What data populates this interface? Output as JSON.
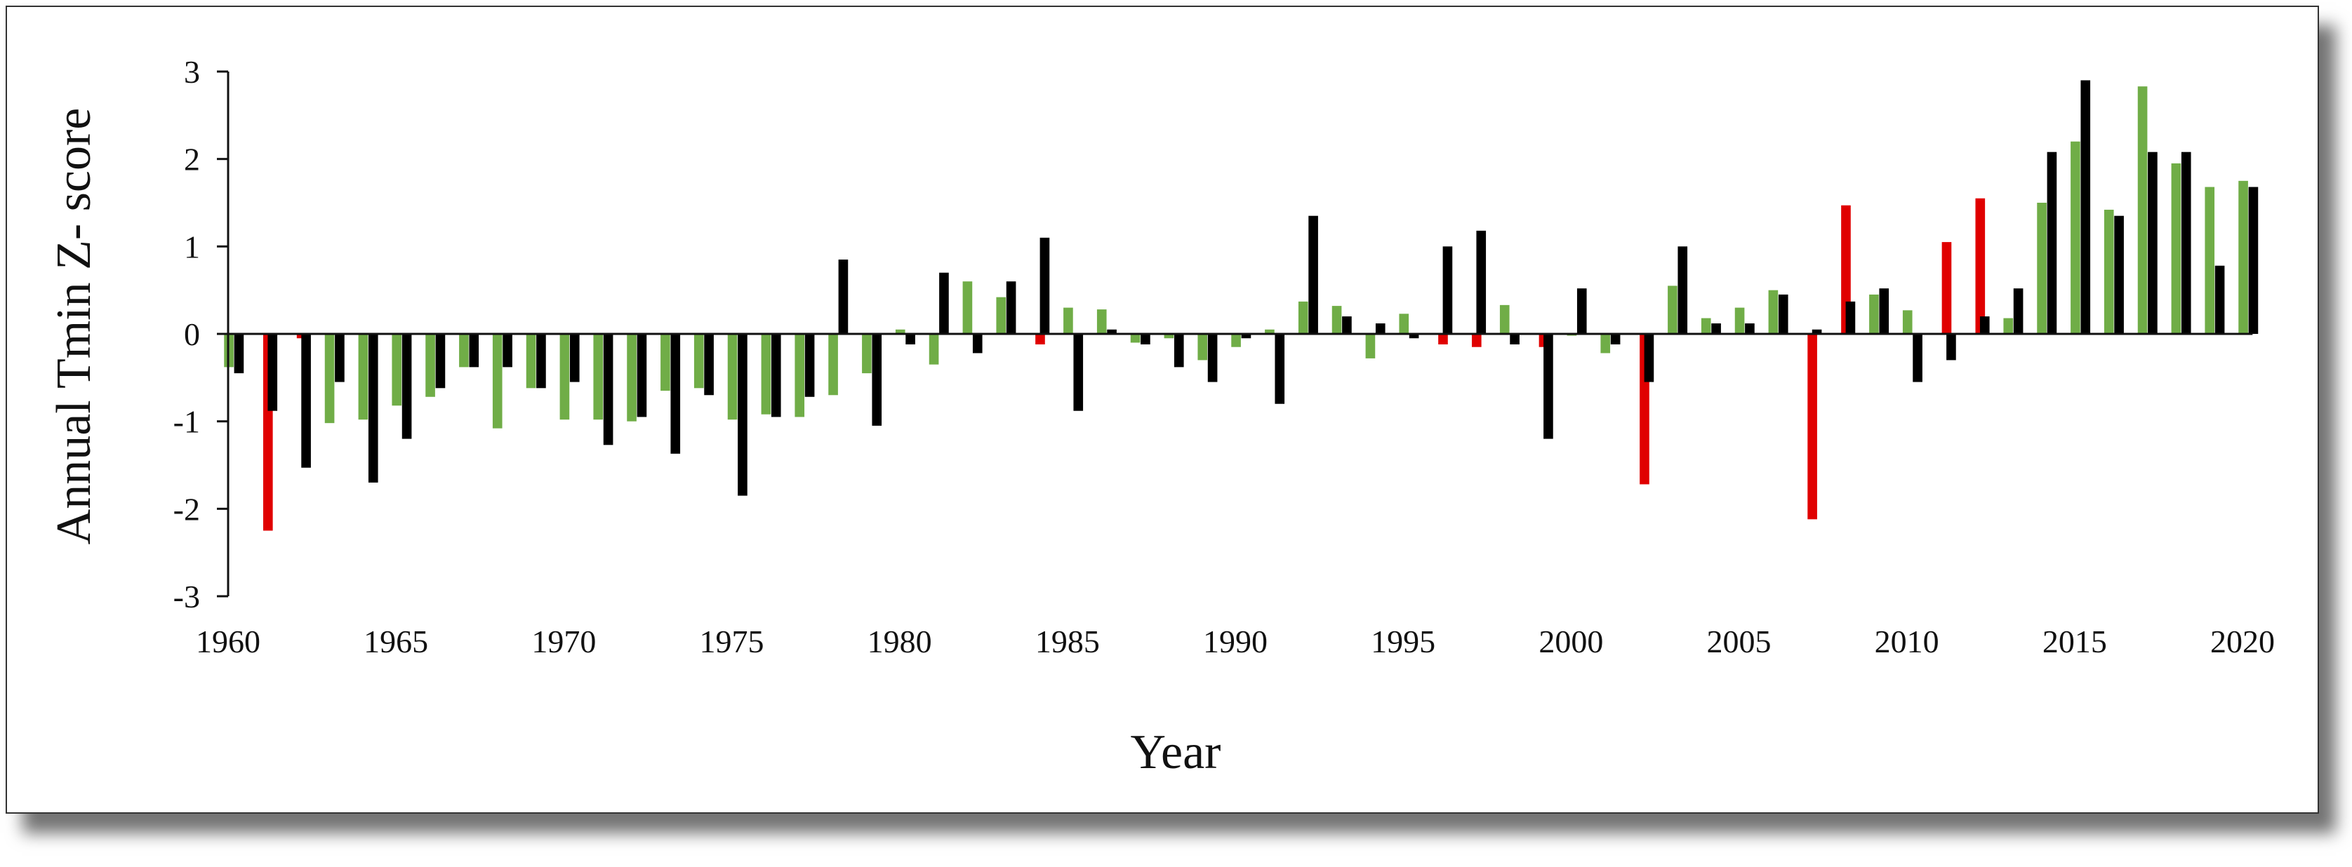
{
  "chart_data": {
    "type": "bar",
    "title": "",
    "xlabel": "Year",
    "ylabel": "Annual Tmin Z- score",
    "ylim": [
      -3,
      3
    ],
    "yticks": [
      3,
      2,
      1,
      0,
      -1,
      -2,
      -3
    ],
    "xticks": [
      1960,
      1965,
      1970,
      1975,
      1980,
      1985,
      1990,
      1995,
      2000,
      2005,
      2010,
      2015,
      2020
    ],
    "xlim": [
      1960,
      2020
    ],
    "grid": false,
    "legend": "none",
    "series": [
      {
        "color": "#e00000",
        "points": [
          {
            "x": 1961,
            "y": -2.25
          },
          {
            "x": 1962,
            "y": -0.05
          },
          {
            "x": 1984,
            "y": -0.12
          },
          {
            "x": 1996,
            "y": -0.12
          },
          {
            "x": 1997,
            "y": -0.15
          },
          {
            "x": 1999,
            "y": -0.15
          },
          {
            "x": 2002,
            "y": -1.72
          },
          {
            "x": 2007,
            "y": -2.12
          },
          {
            "x": 2008,
            "y": 1.47
          },
          {
            "x": 2011,
            "y": 1.05
          },
          {
            "x": 2012,
            "y": 1.55
          }
        ]
      },
      {
        "color": "#70ad47",
        "points": [
          {
            "x": 1960,
            "y": -0.38
          },
          {
            "x": 1963,
            "y": -1.02
          },
          {
            "x": 1964,
            "y": -0.98
          },
          {
            "x": 1965,
            "y": -0.82
          },
          {
            "x": 1966,
            "y": -0.72
          },
          {
            "x": 1967,
            "y": -0.38
          },
          {
            "x": 1968,
            "y": -1.08
          },
          {
            "x": 1969,
            "y": -0.62
          },
          {
            "x": 1970,
            "y": -0.98
          },
          {
            "x": 1971,
            "y": -0.98
          },
          {
            "x": 1972,
            "y": -1.0
          },
          {
            "x": 1973,
            "y": -0.65
          },
          {
            "x": 1974,
            "y": -0.62
          },
          {
            "x": 1975,
            "y": -0.98
          },
          {
            "x": 1976,
            "y": -0.92
          },
          {
            "x": 1977,
            "y": -0.95
          },
          {
            "x": 1978,
            "y": -0.7
          },
          {
            "x": 1979,
            "y": -0.45
          },
          {
            "x": 1980,
            "y": 0.05
          },
          {
            "x": 1981,
            "y": -0.35
          },
          {
            "x": 1982,
            "y": 0.6
          },
          {
            "x": 1983,
            "y": 0.42
          },
          {
            "x": 1985,
            "y": 0.3
          },
          {
            "x": 1986,
            "y": 0.28
          },
          {
            "x": 1987,
            "y": -0.1
          },
          {
            "x": 1988,
            "y": -0.05
          },
          {
            "x": 1989,
            "y": -0.3
          },
          {
            "x": 1990,
            "y": -0.15
          },
          {
            "x": 1991,
            "y": 0.05
          },
          {
            "x": 1992,
            "y": 0.37
          },
          {
            "x": 1993,
            "y": 0.32
          },
          {
            "x": 1994,
            "y": -0.28
          },
          {
            "x": 1995,
            "y": 0.23
          },
          {
            "x": 1998,
            "y": 0.33
          },
          {
            "x": 2000,
            "y": -0.02
          },
          {
            "x": 2001,
            "y": -0.22
          },
          {
            "x": 2003,
            "y": 0.55
          },
          {
            "x": 2004,
            "y": 0.18
          },
          {
            "x": 2005,
            "y": 0.3
          },
          {
            "x": 2006,
            "y": 0.5
          },
          {
            "x": 2009,
            "y": 0.45
          },
          {
            "x": 2010,
            "y": 0.27
          },
          {
            "x": 2013,
            "y": 0.18
          },
          {
            "x": 2014,
            "y": 1.5
          },
          {
            "x": 2015,
            "y": 2.2
          },
          {
            "x": 2016,
            "y": 1.42
          },
          {
            "x": 2017,
            "y": 2.83
          },
          {
            "x": 2018,
            "y": 1.95
          },
          {
            "x": 2019,
            "y": 1.68
          },
          {
            "x": 2020,
            "y": 1.75
          }
        ]
      },
      {
        "color": "#000000",
        "points": [
          {
            "x": 1960,
            "y": -0.45
          },
          {
            "x": 1961,
            "y": -0.88
          },
          {
            "x": 1962,
            "y": -1.53
          },
          {
            "x": 1963,
            "y": -0.55
          },
          {
            "x": 1964,
            "y": -1.7
          },
          {
            "x": 1965,
            "y": -1.2
          },
          {
            "x": 1966,
            "y": -0.62
          },
          {
            "x": 1967,
            "y": -0.38
          },
          {
            "x": 1968,
            "y": -0.38
          },
          {
            "x": 1969,
            "y": -0.62
          },
          {
            "x": 1970,
            "y": -0.55
          },
          {
            "x": 1971,
            "y": -1.27
          },
          {
            "x": 1972,
            "y": -0.95
          },
          {
            "x": 1973,
            "y": -1.37
          },
          {
            "x": 1974,
            "y": -0.7
          },
          {
            "x": 1975,
            "y": -1.85
          },
          {
            "x": 1976,
            "y": -0.95
          },
          {
            "x": 1977,
            "y": -0.72
          },
          {
            "x": 1978,
            "y": 0.85
          },
          {
            "x": 1979,
            "y": -1.05
          },
          {
            "x": 1980,
            "y": -0.12
          },
          {
            "x": 1981,
            "y": 0.7
          },
          {
            "x": 1982,
            "y": -0.22
          },
          {
            "x": 1983,
            "y": 0.6
          },
          {
            "x": 1984,
            "y": 1.1
          },
          {
            "x": 1985,
            "y": -0.88
          },
          {
            "x": 1986,
            "y": 0.05
          },
          {
            "x": 1987,
            "y": -0.12
          },
          {
            "x": 1988,
            "y": -0.38
          },
          {
            "x": 1989,
            "y": -0.55
          },
          {
            "x": 1990,
            "y": -0.05
          },
          {
            "x": 1991,
            "y": -0.8
          },
          {
            "x": 1992,
            "y": 1.35
          },
          {
            "x": 1993,
            "y": 0.2
          },
          {
            "x": 1994,
            "y": 0.12
          },
          {
            "x": 1995,
            "y": -0.05
          },
          {
            "x": 1996,
            "y": 1.0
          },
          {
            "x": 1997,
            "y": 1.18
          },
          {
            "x": 1998,
            "y": -0.12
          },
          {
            "x": 1999,
            "y": -1.2
          },
          {
            "x": 2000,
            "y": 0.52
          },
          {
            "x": 2001,
            "y": -0.12
          },
          {
            "x": 2002,
            "y": -0.55
          },
          {
            "x": 2003,
            "y": 1.0
          },
          {
            "x": 2004,
            "y": 0.12
          },
          {
            "x": 2005,
            "y": 0.12
          },
          {
            "x": 2006,
            "y": 0.45
          },
          {
            "x": 2007,
            "y": 0.05
          },
          {
            "x": 2008,
            "y": 0.37
          },
          {
            "x": 2009,
            "y": 0.52
          },
          {
            "x": 2010,
            "y": -0.55
          },
          {
            "x": 2011,
            "y": -0.3
          },
          {
            "x": 2012,
            "y": 0.2
          },
          {
            "x": 2013,
            "y": 0.52
          },
          {
            "x": 2014,
            "y": 2.08
          },
          {
            "x": 2015,
            "y": 2.9
          },
          {
            "x": 2016,
            "y": 1.35
          },
          {
            "x": 2017,
            "y": 2.08
          },
          {
            "x": 2018,
            "y": 2.08
          },
          {
            "x": 2019,
            "y": 0.78
          },
          {
            "x": 2020,
            "y": 1.68
          }
        ]
      }
    ]
  }
}
